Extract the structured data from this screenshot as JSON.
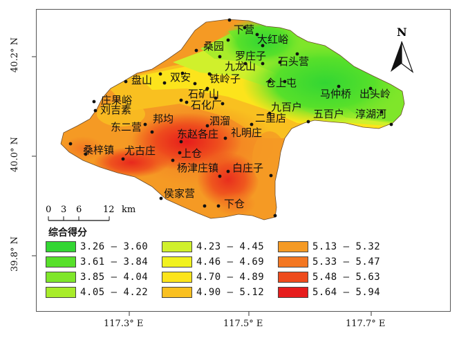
{
  "map": {
    "lon_ticks": [
      "117.3° E",
      "117.5° E",
      "117.7° E"
    ],
    "lat_ticks": [
      "40.2° N",
      "40.0° N",
      "39.8° N"
    ],
    "north_label": "N",
    "scale_bar": {
      "ticks": [
        "0",
        "3",
        "6",
        "12"
      ],
      "unit": "km"
    },
    "legend_title": "综合得分",
    "legend": [
      {
        "label": "3.26 – 3.60",
        "color": "#33d633"
      },
      {
        "label": "3.61 – 3.84",
        "color": "#57e02a"
      },
      {
        "label": "3.85 – 4.04",
        "color": "#7fe62a"
      },
      {
        "label": "4.05 – 4.22",
        "color": "#a8ec2a"
      },
      {
        "label": "4.23 – 4.45",
        "color": "#d0f02c"
      },
      {
        "label": "4.46 – 4.69",
        "color": "#f1f21f"
      },
      {
        "label": "4.70 – 4.89",
        "color": "#fce41c"
      },
      {
        "label": "4.90 – 5.12",
        "color": "#f9c020"
      },
      {
        "label": "5.13 – 5.32",
        "color": "#f59a24"
      },
      {
        "label": "5.33 – 5.47",
        "color": "#f37722"
      },
      {
        "label": "5.48 – 5.63",
        "color": "#ee4b1d"
      },
      {
        "label": "5.64 – 5.94",
        "color": "#e61c1c"
      }
    ],
    "places": [
      "下营",
      "大红峪",
      "桑园",
      "罗庄子",
      "九龙山",
      "石头营",
      "盘山",
      "双安",
      "铁岭子",
      "仓上屯",
      "庄果峪",
      "刘吉素",
      "石矿山",
      "石化厂",
      "马仲桥",
      "出头岭",
      "九百户",
      "五百户",
      "淳湖河",
      "东二营",
      "邦均",
      "泗溜",
      "二里店",
      "东赵各庄",
      "礼明庄",
      "桑梓镇",
      "尤古庄",
      "上仓",
      "杨津庄镇",
      "白庄子",
      "侯家营",
      "下仓"
    ]
  }
}
